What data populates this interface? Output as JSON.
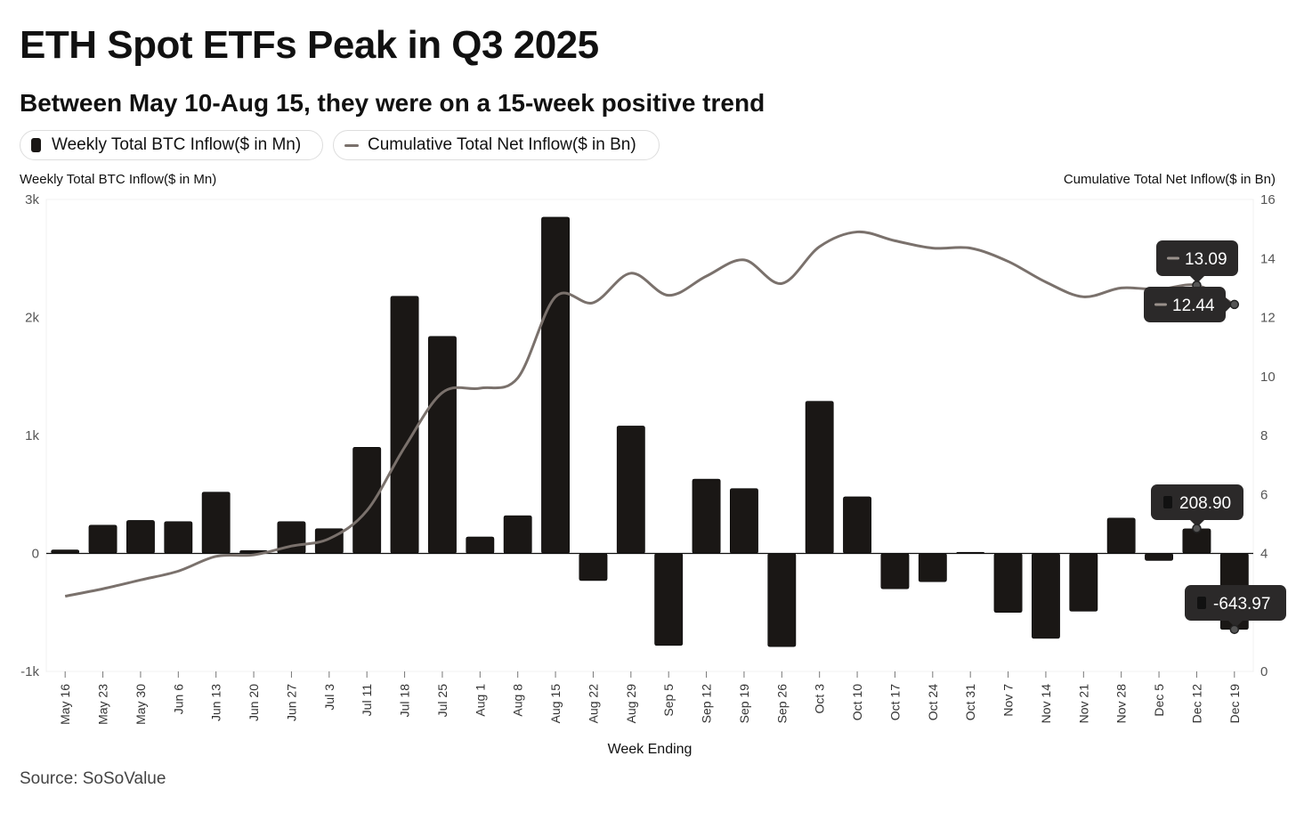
{
  "header": {
    "title": "ETH Spot ETFs Peak in Q3 2025",
    "subtitle": "Between May 10-Aug 15, they were on a 15-week positive trend"
  },
  "legend": {
    "bars": "Weekly Total BTC Inflow($ in Mn)",
    "line": "Cumulative Total Net Inflow($ in Bn)"
  },
  "source": "Source: SoSoValue",
  "chart_data": {
    "type": "bar+line",
    "xlabel": "Week Ending",
    "ylabel_left": "Weekly Total BTC Inflow($ in Mn)",
    "ylabel_right": "Cumulative Total Net Inflow($ in Bn)",
    "ylim_left": [
      -1000,
      3000
    ],
    "ylim_right": [
      0,
      16
    ],
    "yticks_left": [
      "-1k",
      "0",
      "1k",
      "2k",
      "3k"
    ],
    "yticks_right": [
      "0",
      "2",
      "4",
      "6",
      "8",
      "10",
      "12",
      "14",
      "16"
    ],
    "categories": [
      "May 16",
      "May 23",
      "May 30",
      "Jun 6",
      "Jun 13",
      "Jun 20",
      "Jun 27",
      "Jul 3",
      "Jul 11",
      "Jul 18",
      "Jul 25",
      "Aug 1",
      "Aug 8",
      "Aug 15",
      "Aug 22",
      "Aug 29",
      "Sep 5",
      "Sep 12",
      "Sep 19",
      "Sep 26",
      "Oct 3",
      "Oct 10",
      "Oct 17",
      "Oct 24",
      "Oct 31",
      "Nov 7",
      "Nov 14",
      "Nov 21",
      "Nov 28",
      "Dec 5",
      "Dec 12",
      "Dec 19"
    ],
    "series": [
      {
        "name": "Weekly Total BTC Inflow($ in Mn)",
        "kind": "bar",
        "axis": "left",
        "color": "#1a1715",
        "values": [
          30,
          240,
          280,
          270,
          520,
          25,
          270,
          210,
          900,
          2180,
          1840,
          140,
          320,
          2850,
          -230,
          1080,
          -780,
          630,
          550,
          -790,
          1290,
          480,
          -300,
          -240,
          10,
          -500,
          -720,
          -490,
          300,
          -60,
          208.9,
          -643.97
        ]
      },
      {
        "name": "Cumulative Total Net Inflow($ in Bn)",
        "kind": "line",
        "axis": "right",
        "color": "#7a716c",
        "values": [
          2.55,
          2.8,
          3.1,
          3.4,
          3.9,
          3.95,
          4.25,
          4.5,
          5.45,
          7.6,
          9.45,
          9.6,
          9.95,
          12.7,
          12.5,
          13.5,
          12.75,
          13.4,
          13.95,
          13.15,
          14.4,
          14.9,
          14.6,
          14.35,
          14.35,
          13.9,
          13.2,
          12.7,
          13.0,
          12.95,
          13.09,
          12.44
        ]
      }
    ],
    "annotations": {
      "line_last": "13.09",
      "line_end": "12.44",
      "bar_last": "208.90",
      "bar_end": "-643.97"
    }
  }
}
